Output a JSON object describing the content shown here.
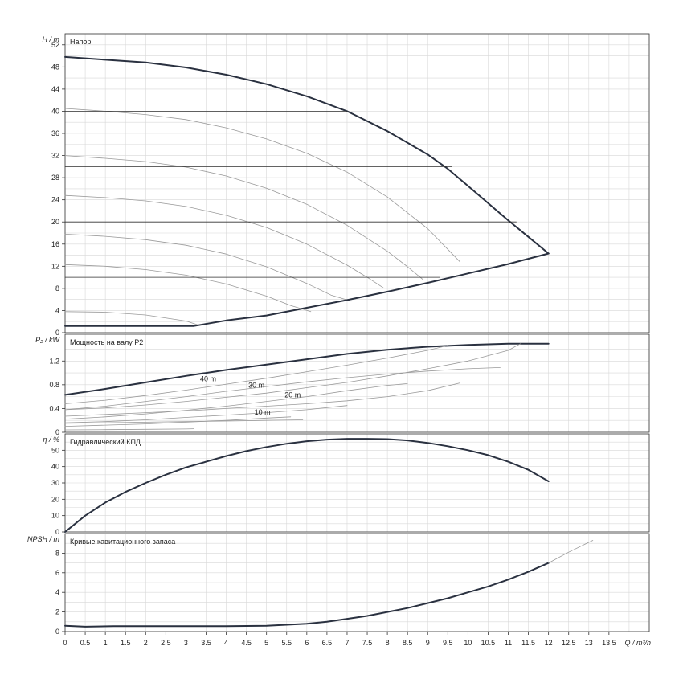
{
  "x_axis": {
    "ticks": [
      "0",
      "0.5",
      "1",
      "1.5",
      "2",
      "2.5",
      "3",
      "3.5",
      "4",
      "4.5",
      "5",
      "5.5",
      "6",
      "6.5",
      "7",
      "7.5",
      "8",
      "8.5",
      "9",
      "9.5",
      "10",
      "10.5",
      "11",
      "11.5",
      "12",
      "12.5",
      "13",
      "13.5"
    ],
    "label": "Q / m³/h",
    "range": [
      0,
      14.5
    ]
  },
  "chart_data": [
    {
      "type": "line",
      "id": "head",
      "title": "Напор",
      "ylabel": "H / m",
      "ylim": [
        0,
        54
      ],
      "yticks": [
        0,
        4,
        8,
        12,
        16,
        20,
        24,
        28,
        32,
        36,
        40,
        44,
        48,
        52
      ],
      "grid": true,
      "series": [
        {
          "role": "max-curve",
          "x": [
            0,
            1,
            2,
            3,
            4,
            5,
            6,
            7,
            8,
            9,
            9.5,
            10,
            10.5,
            11,
            11.5,
            12
          ],
          "values": [
            49.8,
            49.3,
            48.8,
            47.9,
            46.6,
            44.9,
            42.7,
            40.0,
            36.4,
            32.2,
            29.6,
            26.5,
            23.4,
            20.3,
            17.3,
            14.3
          ]
        },
        {
          "role": "speed-curve",
          "x": [
            0,
            1,
            2,
            3,
            4,
            5,
            6,
            7,
            8,
            9,
            9.8
          ],
          "values": [
            40.5,
            40.0,
            39.4,
            38.5,
            37.0,
            35.0,
            32.4,
            29.0,
            24.5,
            18.8,
            12.8
          ]
        },
        {
          "role": "speed-curve",
          "x": [
            0,
            1,
            2,
            3,
            4,
            5,
            6,
            7,
            8,
            8.5,
            8.9
          ],
          "values": [
            32.0,
            31.5,
            30.9,
            29.9,
            28.3,
            26.1,
            23.2,
            19.4,
            14.7,
            11.9,
            9.5
          ]
        },
        {
          "role": "speed-curve",
          "x": [
            0,
            1,
            2,
            3,
            4,
            5,
            6,
            7,
            7.5,
            7.9
          ],
          "values": [
            24.8,
            24.4,
            23.8,
            22.8,
            21.2,
            19.0,
            16.0,
            12.2,
            10.0,
            8.1
          ]
        },
        {
          "role": "speed-curve",
          "x": [
            0,
            1,
            2,
            3,
            4,
            5,
            6,
            6.6,
            7.1
          ],
          "values": [
            17.8,
            17.4,
            16.8,
            15.8,
            14.2,
            11.9,
            8.9,
            6.8,
            5.7
          ]
        },
        {
          "role": "speed-curve",
          "x": [
            0,
            1,
            2,
            3,
            4,
            5,
            5.6,
            6.1
          ],
          "values": [
            12.3,
            12.0,
            11.4,
            10.4,
            8.8,
            6.6,
            4.9,
            3.8
          ]
        },
        {
          "role": "speed-curve",
          "x": [
            0,
            1,
            2,
            3,
            3.3
          ],
          "values": [
            3.8,
            3.7,
            3.2,
            2.1,
            1.4
          ]
        },
        {
          "role": "min-curve",
          "x": [
            0,
            3.2,
            4,
            5,
            6,
            7,
            8,
            9,
            10,
            11,
            12
          ],
          "values": [
            1.2,
            1.2,
            2.2,
            3.1,
            4.5,
            5.9,
            7.4,
            9.0,
            10.7,
            12.4,
            14.3
          ]
        },
        {
          "role": "reference-line",
          "x": [
            0,
            7.0
          ],
          "values": [
            40,
            40
          ]
        },
        {
          "role": "reference-line",
          "x": [
            0,
            9.6
          ],
          "values": [
            30,
            30
          ]
        },
        {
          "role": "reference-line",
          "x": [
            0,
            11.2
          ],
          "values": [
            20,
            20
          ]
        },
        {
          "role": "reference-line",
          "x": [
            0,
            9.3
          ],
          "values": [
            10,
            10
          ]
        }
      ]
    },
    {
      "type": "line",
      "id": "power",
      "title": "Мощность на валу P2",
      "ylabel": "P₂ / kW",
      "ylim": [
        0,
        1.65
      ],
      "yticks": [
        0,
        0.4,
        0.8,
        1.2
      ],
      "grid": true,
      "annotations": [
        {
          "text": "40 m",
          "x": 3.55,
          "y": 0.86
        },
        {
          "text": "30 m",
          "x": 4.75,
          "y": 0.75
        },
        {
          "text": "20 m",
          "x": 5.65,
          "y": 0.59
        },
        {
          "text": "10 m",
          "x": 4.9,
          "y": 0.3
        }
      ],
      "series": [
        {
          "role": "max-curve",
          "x": [
            0,
            1,
            2,
            3,
            4,
            5,
            6,
            7,
            8,
            9,
            10,
            11,
            11.3,
            12
          ],
          "values": [
            0.63,
            0.73,
            0.84,
            0.95,
            1.05,
            1.14,
            1.23,
            1.32,
            1.39,
            1.44,
            1.47,
            1.49,
            1.49,
            1.49
          ]
        },
        {
          "role": "speed-curve",
          "x": [
            0,
            1,
            2,
            3,
            4,
            5,
            6,
            7,
            8,
            9,
            9.5
          ],
          "values": [
            0.48,
            0.54,
            0.62,
            0.71,
            0.81,
            0.91,
            1.02,
            1.13,
            1.25,
            1.38,
            1.46
          ]
        },
        {
          "role": "speed-curve",
          "x": [
            0,
            1,
            2,
            3,
            4,
            5,
            6,
            7,
            8,
            9,
            10,
            11,
            11.3
          ],
          "values": [
            0.38,
            0.41,
            0.46,
            0.52,
            0.59,
            0.66,
            0.75,
            0.84,
            0.95,
            1.07,
            1.2,
            1.38,
            1.49
          ]
        },
        {
          "role": "speed-curve",
          "x": [
            0,
            1,
            2,
            3,
            4,
            5,
            6,
            7,
            8,
            9,
            9.8
          ],
          "values": [
            0.27,
            0.3,
            0.33,
            0.36,
            0.4,
            0.44,
            0.48,
            0.53,
            0.6,
            0.7,
            0.83
          ]
        },
        {
          "role": "speed-curve",
          "x": [
            0,
            1,
            2,
            3,
            4,
            5,
            6,
            7,
            8,
            9,
            10,
            10.8
          ],
          "values": [
            0.38,
            0.44,
            0.52,
            0.6,
            0.69,
            0.77,
            0.85,
            0.92,
            0.98,
            1.03,
            1.07,
            1.09
          ]
        },
        {
          "role": "speed-curve",
          "x": [
            0,
            1,
            2,
            3,
            4,
            5,
            6,
            7,
            8,
            8.5
          ],
          "values": [
            0.22,
            0.26,
            0.31,
            0.37,
            0.44,
            0.52,
            0.6,
            0.7,
            0.79,
            0.82
          ]
        },
        {
          "role": "speed-curve",
          "x": [
            0,
            1,
            2,
            3,
            4,
            5,
            6,
            7
          ],
          "values": [
            0.16,
            0.18,
            0.21,
            0.25,
            0.29,
            0.33,
            0.38,
            0.45
          ]
        },
        {
          "role": "speed-curve",
          "x": [
            0,
            1,
            2,
            3,
            4,
            5,
            5.6
          ],
          "values": [
            0.1,
            0.12,
            0.14,
            0.17,
            0.2,
            0.24,
            0.26
          ]
        },
        {
          "role": "speed-curve",
          "x": [
            0,
            1,
            2,
            3,
            4,
            5,
            5.9
          ],
          "values": [
            0.15,
            0.16,
            0.17,
            0.18,
            0.19,
            0.2,
            0.21
          ]
        },
        {
          "role": "speed-curve",
          "x": [
            0,
            1,
            2,
            3,
            3.2
          ],
          "values": [
            0.04,
            0.045,
            0.05,
            0.055,
            0.06
          ]
        }
      ]
    },
    {
      "type": "line",
      "id": "efficiency",
      "title": "Гидравлический КПД",
      "ylabel": "η / %",
      "ylim": [
        0,
        60
      ],
      "yticks": [
        0,
        10,
        20,
        30,
        40,
        50
      ],
      "grid": true,
      "series": [
        {
          "role": "max-curve",
          "x": [
            0,
            0.5,
            1,
            1.5,
            2,
            2.5,
            3,
            3.5,
            4,
            4.5,
            5,
            5.5,
            6,
            6.5,
            7,
            7.5,
            8,
            8.5,
            9,
            9.5,
            10,
            10.5,
            11,
            11.5,
            12
          ],
          "values": [
            0,
            10,
            18,
            24.5,
            30,
            35,
            39.5,
            43,
            46.5,
            49.5,
            52,
            54,
            55.5,
            56.5,
            57,
            57,
            56.8,
            56,
            54.5,
            52.5,
            50,
            47,
            43,
            38,
            31
          ]
        }
      ]
    },
    {
      "type": "line",
      "id": "npsh",
      "title": "Кривые кавитационного запаса",
      "ylabel": "NPSH / m",
      "ylim": [
        0,
        10
      ],
      "yticks": [
        0,
        2,
        4,
        6,
        8
      ],
      "grid": true,
      "series": [
        {
          "role": "max-curve",
          "x": [
            0,
            0.5,
            1.2,
            2,
            3,
            4,
            5,
            6,
            6.5,
            7,
            7.5,
            8,
            8.5,
            9,
            9.5,
            10,
            10.5,
            11,
            11.5,
            12
          ],
          "values": [
            0.6,
            0.5,
            0.55,
            0.55,
            0.55,
            0.55,
            0.6,
            0.8,
            1.0,
            1.3,
            1.6,
            2.0,
            2.4,
            2.9,
            3.4,
            4.0,
            4.6,
            5.3,
            6.1,
            7.0
          ]
        },
        {
          "role": "extension",
          "x": [
            12,
            12.5,
            13.1
          ],
          "values": [
            7.0,
            8.1,
            9.3
          ]
        }
      ]
    }
  ]
}
